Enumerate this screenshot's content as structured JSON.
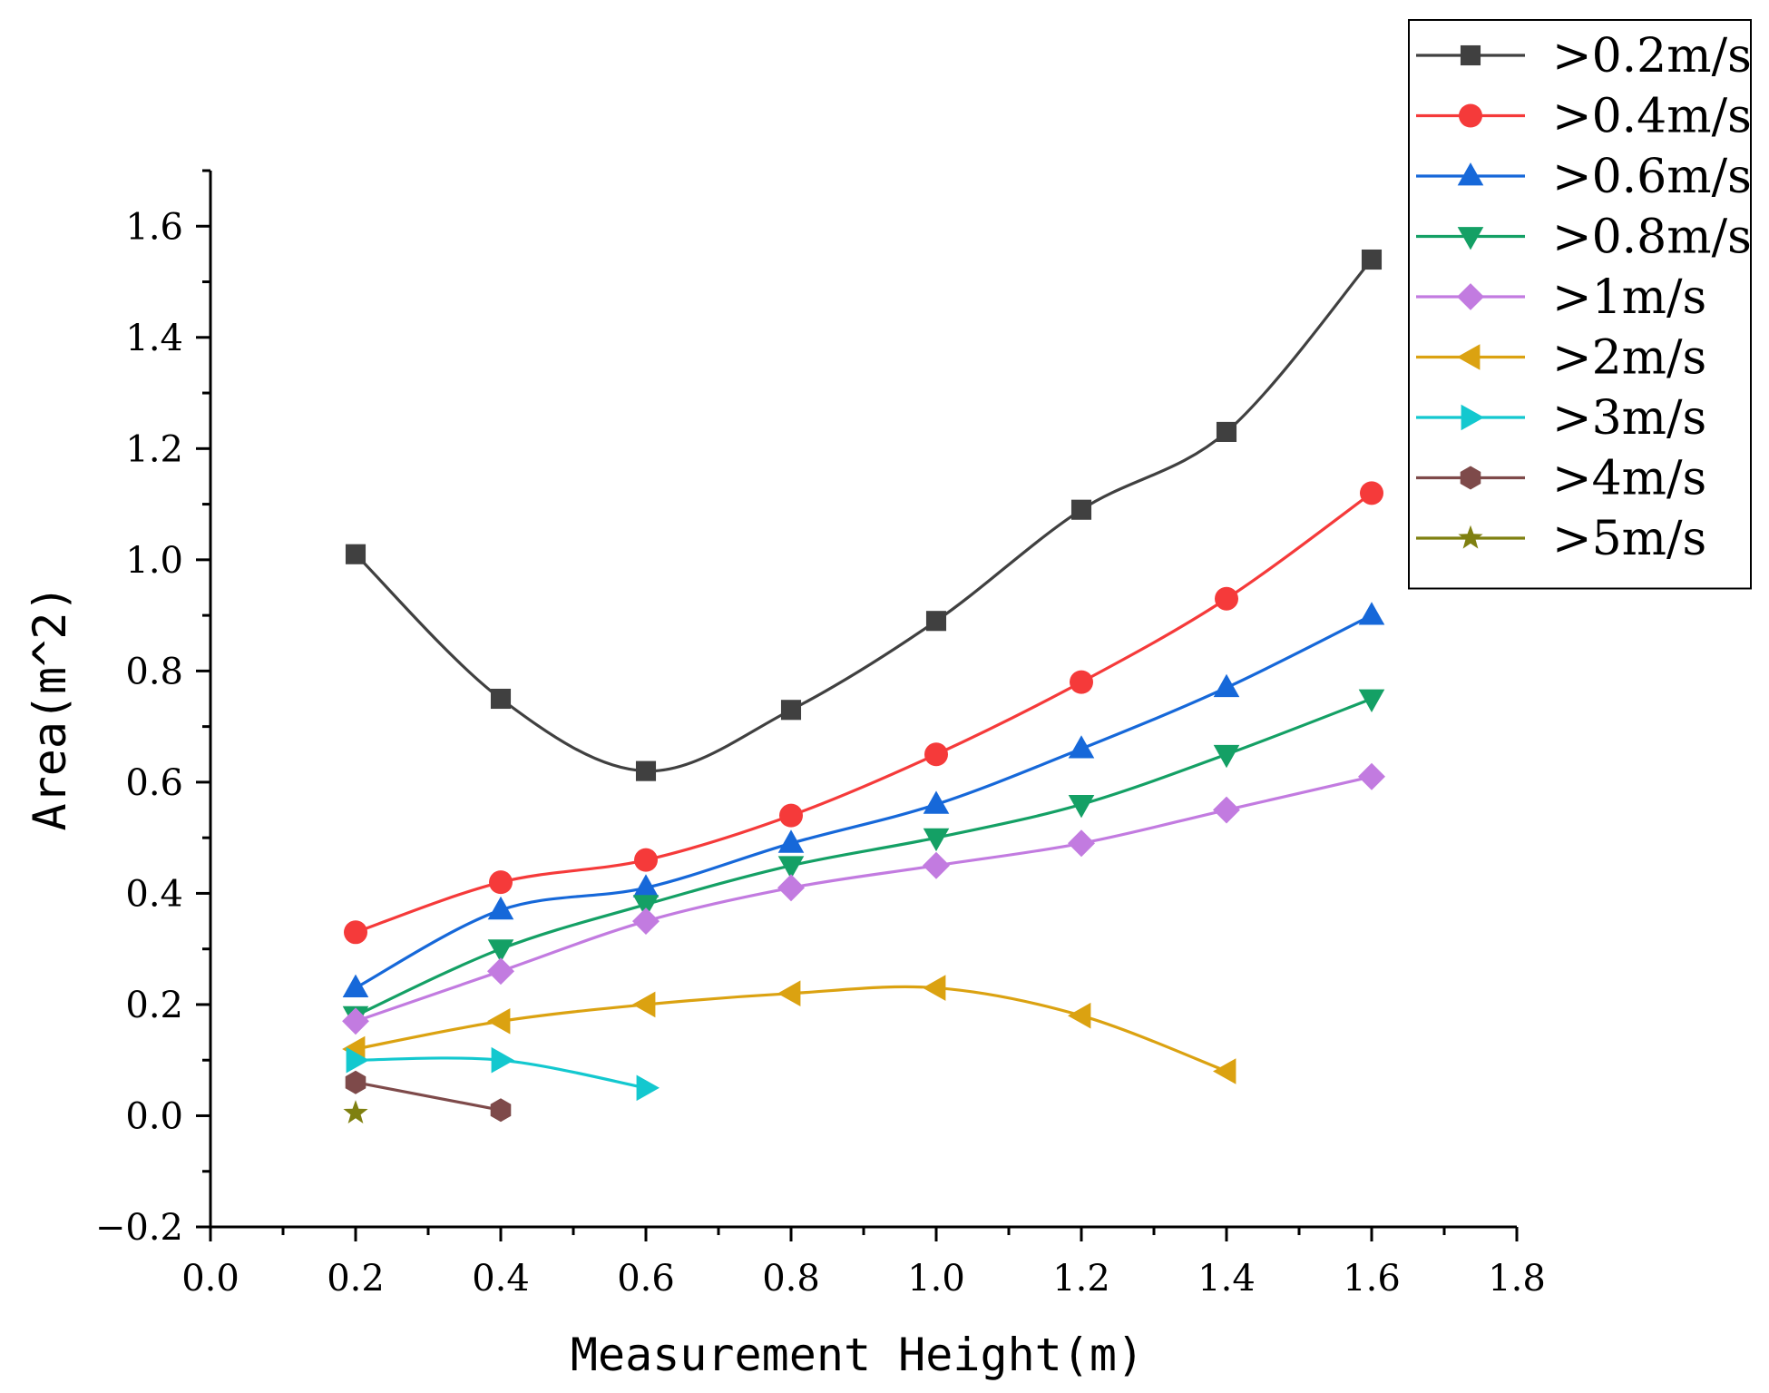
{
  "chart_data": {
    "type": "line",
    "title": "",
    "xlabel": "Measurement Height(m)",
    "ylabel": "Area(m^2)",
    "xlim": [
      0.0,
      1.8
    ],
    "ylim": [
      -0.2,
      1.7
    ],
    "x_ticks": [
      "0.0",
      "0.2",
      "0.4",
      "0.6",
      "0.8",
      "1.0",
      "1.2",
      "1.4",
      "1.6",
      "1.8"
    ],
    "y_ticks": [
      "-0.2",
      "0.0",
      "0.2",
      "0.4",
      "0.6",
      "0.8",
      "1.0",
      "1.2",
      "1.4",
      "1.6"
    ],
    "legend_position": "top-right outside plot",
    "series": [
      {
        "name": ">0.2m/s",
        "color": "#404040",
        "marker": "square",
        "x": [
          0.2,
          0.4,
          0.6,
          0.8,
          1.0,
          1.2,
          1.4,
          1.6
        ],
        "y": [
          1.01,
          0.75,
          0.62,
          0.73,
          0.89,
          1.09,
          1.23,
          1.54
        ]
      },
      {
        "name": ">0.4m/s",
        "color": "#f53a3a",
        "marker": "circle",
        "x": [
          0.2,
          0.4,
          0.6,
          0.8,
          1.0,
          1.2,
          1.4,
          1.6
        ],
        "y": [
          0.33,
          0.42,
          0.46,
          0.54,
          0.65,
          0.78,
          0.93,
          1.12
        ]
      },
      {
        "name": ">0.6m/s",
        "color": "#1668d9",
        "marker": "triangle-up",
        "x": [
          0.2,
          0.4,
          0.6,
          0.8,
          1.0,
          1.2,
          1.4,
          1.6
        ],
        "y": [
          0.23,
          0.37,
          0.41,
          0.49,
          0.56,
          0.66,
          0.77,
          0.9
        ]
      },
      {
        "name": ">0.8m/s",
        "color": "#14a065",
        "marker": "triangle-down",
        "x": [
          0.2,
          0.4,
          0.6,
          0.8,
          1.0,
          1.2,
          1.4,
          1.6
        ],
        "y": [
          0.18,
          0.3,
          0.38,
          0.45,
          0.5,
          0.56,
          0.65,
          0.75
        ]
      },
      {
        "name": ">1m/s",
        "color": "#c27be0",
        "marker": "diamond",
        "x": [
          0.2,
          0.4,
          0.6,
          0.8,
          1.0,
          1.2,
          1.4,
          1.6
        ],
        "y": [
          0.17,
          0.26,
          0.35,
          0.41,
          0.45,
          0.49,
          0.55,
          0.61
        ]
      },
      {
        "name": ">2m/s",
        "color": "#dba211",
        "marker": "triangle-left",
        "x": [
          0.2,
          0.4,
          0.6,
          0.8,
          1.0,
          1.2,
          1.4
        ],
        "y": [
          0.12,
          0.17,
          0.2,
          0.22,
          0.23,
          0.18,
          0.08
        ]
      },
      {
        "name": ">3m/s",
        "color": "#13c8cf",
        "marker": "triangle-right",
        "x": [
          0.2,
          0.4,
          0.6
        ],
        "y": [
          0.1,
          0.1,
          0.05
        ]
      },
      {
        "name": ">4m/s",
        "color": "#7e4a4a",
        "marker": "hexagon",
        "x": [
          0.2,
          0.4
        ],
        "y": [
          0.06,
          0.01
        ]
      },
      {
        "name": ">5m/s",
        "color": "#7f8010",
        "marker": "star",
        "x": [
          0.2
        ],
        "y": [
          0.005
        ]
      }
    ]
  }
}
